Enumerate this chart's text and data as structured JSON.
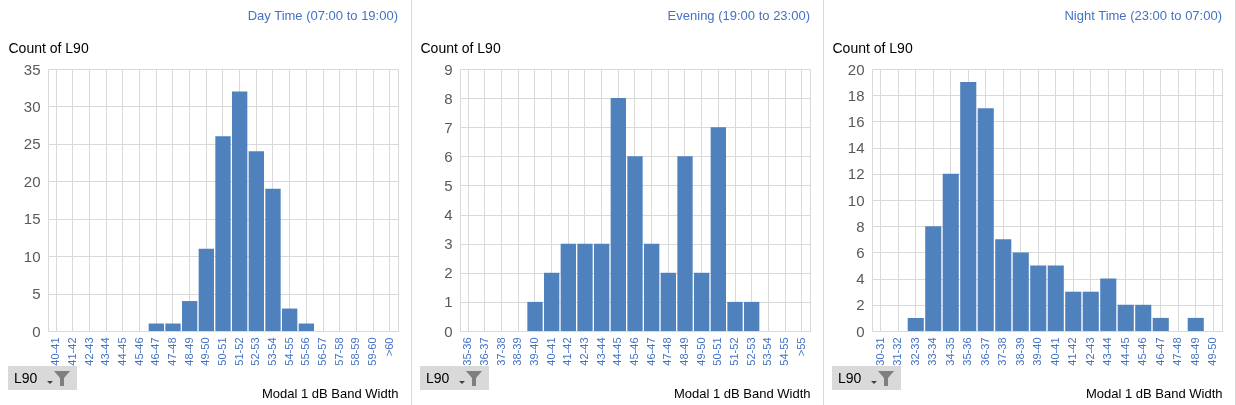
{
  "chart_data": [
    {
      "type": "bar",
      "title": "Day Time (07:00 to 19:00)",
      "ylabel": "Count of L90",
      "xlabel": "Modal 1 dB Band Width",
      "annotations": [
        "L90"
      ],
      "categories": [
        "40-41",
        "41-42",
        "42-43",
        "43-44",
        "44-45",
        "45-46",
        "46-47",
        "47-48",
        "48-49",
        "49-50",
        "50-51",
        "51-52",
        "52-53",
        "53-54",
        "54-55",
        "55-56",
        "56-57",
        "57-58",
        "58-59",
        "59-60",
        ">60"
      ],
      "values": [
        0,
        0,
        0,
        0,
        0,
        0,
        1,
        1,
        4,
        11,
        26,
        32,
        24,
        19,
        3,
        1,
        0,
        0,
        0,
        0,
        0
      ],
      "color": "#4f81bd",
      "ylim": [
        0,
        35
      ],
      "yticks": [
        0,
        5,
        10,
        15,
        20,
        25,
        30,
        35
      ],
      "grid": true
    },
    {
      "type": "bar",
      "title": "Evening (19:00 to 23:00)",
      "ylabel": "Count of L90",
      "xlabel": "Modal 1 dB Band Width",
      "annotations": [
        "L90"
      ],
      "categories": [
        "35-36",
        "36-37",
        "37-38",
        "38-39",
        "39-40",
        "40-41",
        "41-42",
        "42-43",
        "43-44",
        "44-45",
        "45-46",
        "46-47",
        "47-48",
        "48-49",
        "49-50",
        "50-51",
        "51-52",
        "52-53",
        "53-54",
        "54-55",
        ">55"
      ],
      "values": [
        0,
        0,
        0,
        0,
        1,
        2,
        3,
        3,
        3,
        8,
        6,
        3,
        2,
        6,
        2,
        7,
        1,
        1,
        0,
        0,
        0
      ],
      "color": "#4f81bd",
      "ylim": [
        0,
        9
      ],
      "yticks": [
        0,
        1,
        2,
        3,
        4,
        5,
        6,
        7,
        8,
        9
      ],
      "grid": true
    },
    {
      "type": "bar",
      "title": "Night Time (23:00 to 07:00)",
      "ylabel": "Count of L90",
      "xlabel": "Modal 1 dB Band Width",
      "annotations": [
        "L90"
      ],
      "categories": [
        "30-31",
        "31-32",
        "32-33",
        "33-34",
        "34-35",
        "35-36",
        "36-37",
        "37-38",
        "38-39",
        "39-40",
        "40-41",
        "41-42",
        "42-43",
        "43-44",
        "44-45",
        "45-46",
        "46-47",
        "47-48",
        "48-49",
        "49-50"
      ],
      "values": [
        0,
        0,
        1,
        8,
        12,
        19,
        17,
        7,
        6,
        5,
        5,
        3,
        3,
        4,
        2,
        2,
        1,
        0,
        1,
        0
      ],
      "color": "#4f81bd",
      "ylim": [
        0,
        20
      ],
      "yticks": [
        0,
        2,
        4,
        6,
        8,
        10,
        12,
        14,
        16,
        18,
        20
      ],
      "grid": true
    }
  ]
}
